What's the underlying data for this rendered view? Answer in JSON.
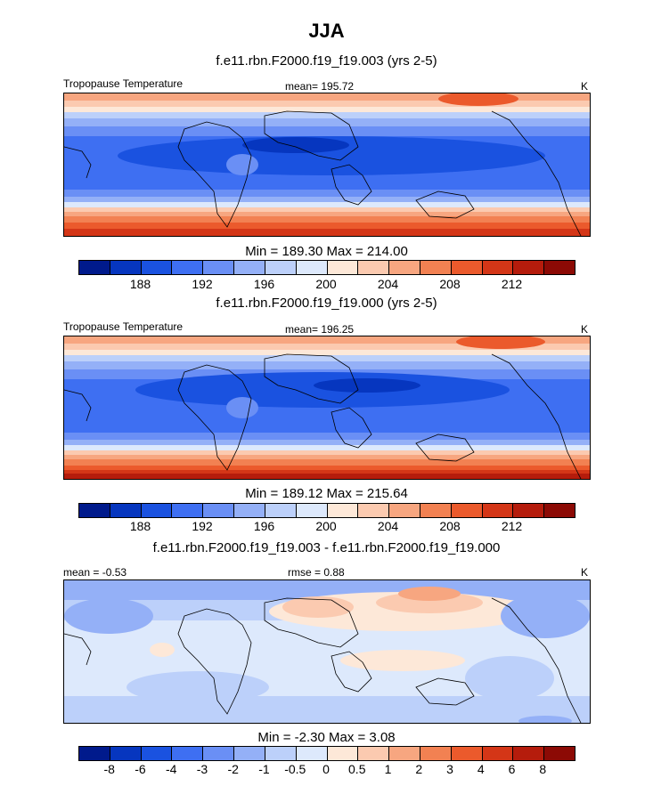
{
  "title": "JJA",
  "colors": {
    "abs": [
      "#001a8c",
      "#0636bf",
      "#1a52e0",
      "#3e6ff2",
      "#6a8ff5",
      "#94b0f7",
      "#bcd0fa",
      "#dde9fc",
      "#fde8d8",
      "#fbcab0",
      "#f7a680",
      "#f28152",
      "#eb5a2c",
      "#d43617",
      "#b51c0c",
      "#8c0a05"
    ],
    "diff": [
      "#001a8c",
      "#0636bf",
      "#1a52e0",
      "#3e6ff2",
      "#6a8ff5",
      "#94b0f7",
      "#bcd0fa",
      "#dde9fc",
      "#fde8d8",
      "#fbcab0",
      "#f7a680",
      "#f28152",
      "#eb5a2c",
      "#d43617",
      "#b51c0c",
      "#8c0a05"
    ],
    "bg_blue": "#3e6ff2"
  },
  "panel1": {
    "case_title": "f.e11.rbn.F2000.f19_f19.003 (yrs 2-5)",
    "left_label": "Tropopause Temperature",
    "center_label": "mean= 195.72",
    "right_label": "K",
    "minmax": "Min = 189.30 Max = 214.00"
  },
  "panel2": {
    "case_title": "f.e11.rbn.F2000.f19_f19.000 (yrs 2-5)",
    "left_label": "Tropopause Temperature",
    "center_label": "mean= 196.25",
    "right_label": "K",
    "minmax": "Min = 189.12 Max = 215.64"
  },
  "panel3": {
    "case_title": "f.e11.rbn.F2000.f19_f19.003 - f.e11.rbn.F2000.f19_f19.000",
    "left_label": "mean =  -0.53",
    "center_label": "rmse =   0.88",
    "right_label": "K",
    "minmax": "Min =  -2.30 Max =   3.08"
  },
  "colorbar_abs_ticks": [
    "188",
    "192",
    "196",
    "200",
    "204",
    "208",
    "212"
  ],
  "colorbar_diff_ticks": [
    "-8",
    "-6",
    "-4",
    "-3",
    "-2",
    "-1",
    "-0.5",
    "0",
    "0.5",
    "1",
    "2",
    "3",
    "4",
    "6",
    "8"
  ],
  "chart_data": [
    {
      "type": "heatmap",
      "title": "f.e11.rbn.F2000.f19_f19.003 (yrs 2-5)",
      "variable": "Tropopause Temperature",
      "units": "K",
      "mean": 195.72,
      "min": 189.3,
      "max": 214.0,
      "levels": [
        186,
        188,
        190,
        192,
        194,
        196,
        198,
        200,
        202,
        204,
        206,
        208,
        210,
        212,
        214
      ],
      "tick_labels": [
        "188",
        "192",
        "196",
        "200",
        "204",
        "208",
        "212"
      ]
    },
    {
      "type": "heatmap",
      "title": "f.e11.rbn.F2000.f19_f19.000 (yrs 2-5)",
      "variable": "Tropopause Temperature",
      "units": "K",
      "mean": 196.25,
      "min": 189.12,
      "max": 215.64,
      "levels": [
        186,
        188,
        190,
        192,
        194,
        196,
        198,
        200,
        202,
        204,
        206,
        208,
        210,
        212,
        214
      ],
      "tick_labels": [
        "188",
        "192",
        "196",
        "200",
        "204",
        "208",
        "212"
      ]
    },
    {
      "type": "heatmap",
      "title": "f.e11.rbn.F2000.f19_f19.003 - f.e11.rbn.F2000.f19_f19.000",
      "units": "K",
      "mean": -0.53,
      "rmse": 0.88,
      "min": -2.3,
      "max": 3.08,
      "levels": [
        -8,
        -6,
        -4,
        -3,
        -2,
        -1,
        -0.5,
        0,
        0.5,
        1,
        2,
        3,
        4,
        6,
        8
      ],
      "tick_labels": [
        "-8",
        "-6",
        "-4",
        "-3",
        "-2",
        "-1",
        "-0.5",
        "0",
        "0.5",
        "1",
        "2",
        "3",
        "4",
        "6",
        "8"
      ]
    }
  ]
}
